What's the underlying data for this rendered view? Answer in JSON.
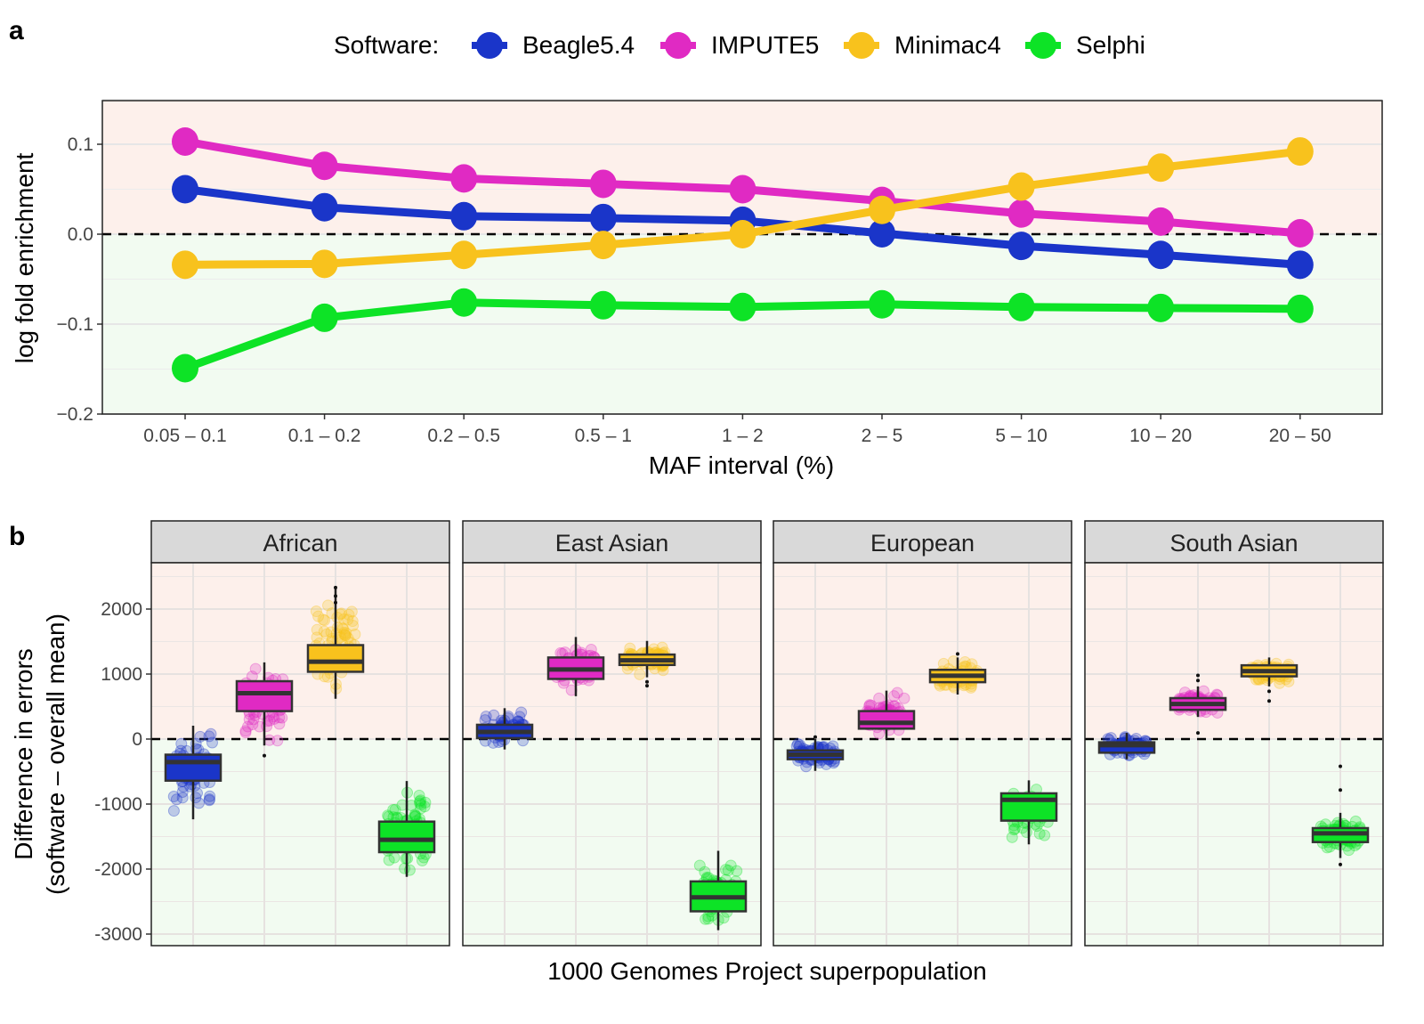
{
  "colors": {
    "Beagle5.4": "#1a35c9",
    "IMPUTE5": "#e02ac3",
    "Minimac4": "#f8c21d",
    "Selphi": "#0de326",
    "above_zero_bg": "#fdf0eb",
    "below_zero_bg": "#f2fbf1",
    "strip_bg": "#d9d9d9"
  },
  "legend": {
    "title": "Software:",
    "items": [
      "Beagle5.4",
      "IMPUTE5",
      "Minimac4",
      "Selphi"
    ],
    "placement": "top"
  },
  "chart_data": [
    {
      "panel_label": "a",
      "type": "line",
      "xlabel": "MAF interval (%)",
      "ylabel": "log fold enrichment",
      "categories": [
        "0.05 – 0.1",
        "0.1 – 0.2",
        "0.2 – 0.5",
        "0.5 – 1",
        "1 – 2",
        "2 – 5",
        "5 – 10",
        "10 – 20",
        "20 – 50"
      ],
      "ylim": [
        -0.2,
        0.15
      ],
      "yticks": [
        {
          "v": 0.1,
          "label": "0.1"
        },
        {
          "v": 0,
          "label": "0.0"
        },
        {
          "v": -0.1,
          "label": "−0.1"
        },
        {
          "v": -0.2,
          "label": "−0.2"
        }
      ],
      "reference_line": 0,
      "grid": true,
      "series": [
        {
          "name": "Beagle5.4",
          "values": [
            0.05,
            0.03,
            0.02,
            0.018,
            0.015,
            0.001,
            -0.013,
            -0.023,
            -0.034
          ]
        },
        {
          "name": "IMPUTE5",
          "values": [
            0.103,
            0.076,
            0.062,
            0.056,
            0.05,
            0.037,
            0.023,
            0.014,
            0.001
          ]
        },
        {
          "name": "Minimac4",
          "values": [
            -0.034,
            -0.033,
            -0.023,
            -0.012,
            0.0,
            0.027,
            0.053,
            0.074,
            0.092
          ]
        },
        {
          "name": "Selphi",
          "values": [
            -0.149,
            -0.093,
            -0.076,
            -0.079,
            -0.081,
            -0.078,
            -0.081,
            -0.082,
            -0.083
          ]
        }
      ]
    },
    {
      "panel_label": "b",
      "type": "box",
      "xlabel": "1000 Genomes Project superpopulation",
      "ylabel": [
        "Difference in errors",
        "(software – overall mean)"
      ],
      "ylim": [
        -3100,
        2500
      ],
      "yticks": [
        {
          "v": 2000,
          "label": "2000"
        },
        {
          "v": 1000,
          "label": "1000"
        },
        {
          "v": 0,
          "label": "0"
        },
        {
          "v": -1000,
          "label": "-1000"
        },
        {
          "v": -2000,
          "label": "-2000"
        },
        {
          "v": -3000,
          "label": "-3000"
        }
      ],
      "reference_line": 0,
      "grid": true,
      "facets": [
        {
          "name": "African",
          "boxes": [
            {
              "software": "Beagle5.4",
              "whisker_low": -1235,
              "q1": -640,
              "median": -355,
              "q3": -240,
              "whisker_high": 205,
              "outliers": []
            },
            {
              "software": "IMPUTE5",
              "whisker_low": -100,
              "q1": 430,
              "median": 705,
              "q3": 890,
              "whisker_high": 1180,
              "outliers": [
                -255
              ]
            },
            {
              "software": "Minimac4",
              "whisker_low": 620,
              "q1": 1035,
              "median": 1190,
              "q3": 1445,
              "whisker_high": 2350,
              "outliers": [
                2200,
                2100,
                2330
              ]
            },
            {
              "software": "Selphi",
              "whisker_low": -2120,
              "q1": -1740,
              "median": -1550,
              "q3": -1270,
              "whisker_high": -645,
              "outliers": []
            }
          ]
        },
        {
          "name": "East Asian",
          "boxes": [
            {
              "software": "Beagle5.4",
              "whisker_low": -160,
              "q1": 15,
              "median": 110,
              "q3": 220,
              "whisker_high": 475,
              "outliers": []
            },
            {
              "software": "IMPUTE5",
              "whisker_low": 660,
              "q1": 925,
              "median": 1070,
              "q3": 1255,
              "whisker_high": 1570,
              "outliers": []
            },
            {
              "software": "Minimac4",
              "whisker_low": 950,
              "q1": 1140,
              "median": 1210,
              "q3": 1300,
              "whisker_high": 1510,
              "outliers": [
                880,
                820
              ]
            },
            {
              "software": "Selphi",
              "whisker_low": -2940,
              "q1": -2650,
              "median": -2435,
              "q3": -2190,
              "whisker_high": -1720,
              "outliers": []
            }
          ]
        },
        {
          "name": "European",
          "boxes": [
            {
              "software": "Beagle5.4",
              "whisker_low": -490,
              "q1": -310,
              "median": -240,
              "q3": -175,
              "whisker_high": 0,
              "outliers": [
                30
              ]
            },
            {
              "software": "IMPUTE5",
              "whisker_low": 0,
              "q1": 160,
              "median": 250,
              "q3": 430,
              "whisker_high": 745,
              "outliers": []
            },
            {
              "software": "Minimac4",
              "whisker_low": 685,
              "q1": 875,
              "median": 975,
              "q3": 1065,
              "whisker_high": 1255,
              "outliers": [
                1310
              ]
            },
            {
              "software": "Selphi",
              "whisker_low": -1620,
              "q1": -1255,
              "median": -935,
              "q3": -835,
              "whisker_high": -635,
              "outliers": []
            }
          ]
        },
        {
          "name": "South Asian",
          "boxes": [
            {
              "software": "Beagle5.4",
              "whisker_low": -310,
              "q1": -210,
              "median": -95,
              "q3": -50,
              "whisker_high": 95,
              "outliers": []
            },
            {
              "software": "IMPUTE5",
              "whisker_low": 340,
              "q1": 450,
              "median": 540,
              "q3": 630,
              "whisker_high": 810,
              "outliers": [
                95,
                900,
                980
              ]
            },
            {
              "software": "Minimac4",
              "whisker_low": 810,
              "q1": 965,
              "median": 1045,
              "q3": 1135,
              "whisker_high": 1255,
              "outliers": [
                735,
                585
              ]
            },
            {
              "software": "Selphi",
              "whisker_low": -1830,
              "q1": -1585,
              "median": -1450,
              "q3": -1370,
              "whisker_high": -1135,
              "outliers": [
                -420,
                -785,
                -1930
              ]
            }
          ]
        }
      ]
    }
  ]
}
